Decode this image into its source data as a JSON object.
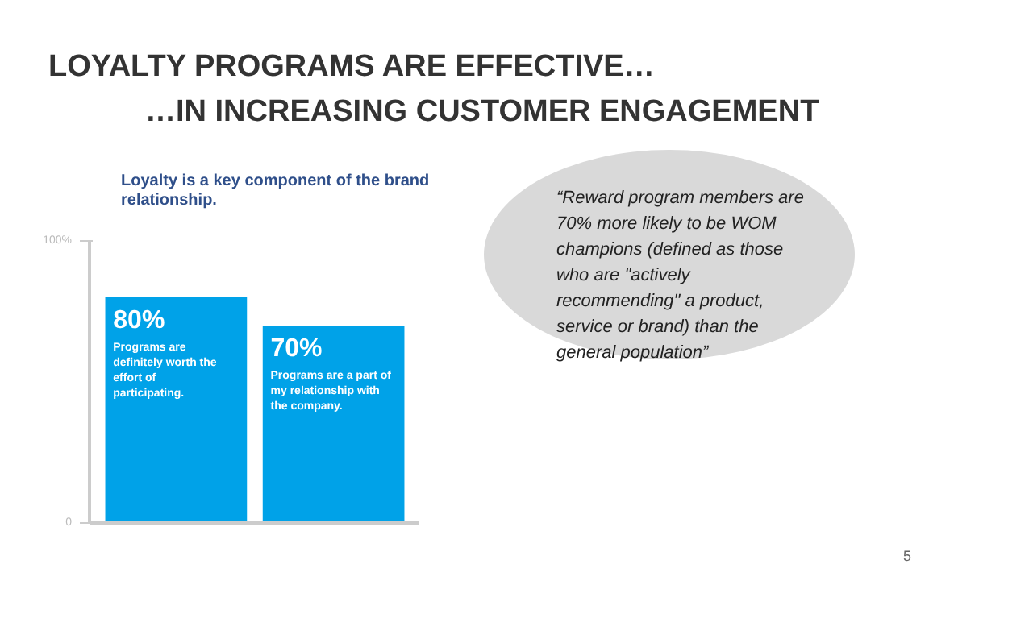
{
  "chart_data": {
    "type": "bar",
    "title": "LOYALTY PROGRAMS ARE EFFECTIVE…\n…IN INCREASING CUSTOMER ENGAGEMENT",
    "subtitle": "Loyalty is a key component of the brand relationship.",
    "categories": [
      "Programs are definitely worth the effort of participating.",
      "Programs are a part of my relationship with the company."
    ],
    "values": [
      80,
      70
    ],
    "color": "#00a2e8",
    "value_labels": [
      "80%",
      "70%"
    ],
    "ylim": [
      0,
      100
    ],
    "yticks": [
      0,
      {
        "value": 100,
        "label": "100%"
      }
    ],
    "annotations": [
      "“Reward program members are 70% more likely to be WOM champions (defined as those who are \"actively recommending\" a product, service or brand) than the general population”",
      "5"
    ]
  }
}
